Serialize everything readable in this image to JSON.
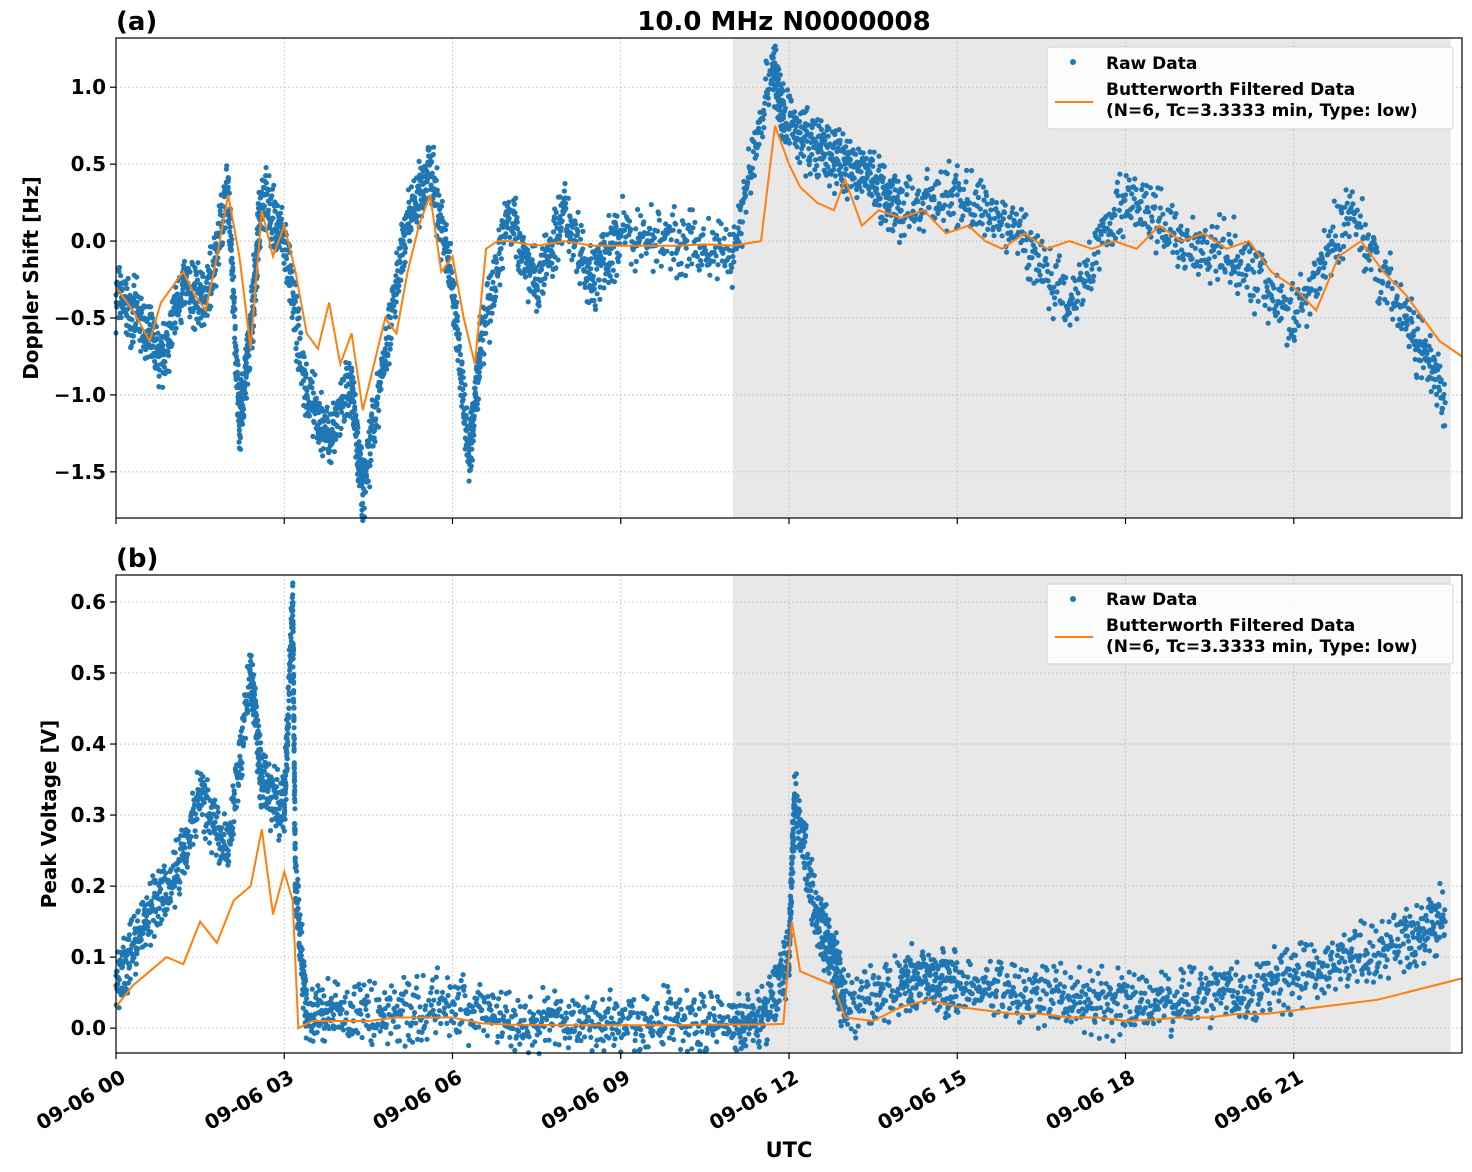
{
  "figure": {
    "title": "10.0 MHz N0000008",
    "xlabel": "UTC",
    "x_ticks": [
      "09-06 00",
      "09-06 03",
      "09-06 06",
      "09-06 09",
      "09-06 12",
      "09-06 15",
      "09-06 18",
      "09-06 21"
    ]
  },
  "colors": {
    "raw": "#1f77b4",
    "filtered": "#ff7f0e",
    "shade": "#e8e8e8",
    "grid": "#b0b0b0"
  },
  "legend": {
    "raw_label": "Raw Data",
    "filtered_label_line1": "Butterworth Filtered Data",
    "filtered_label_line2": "(N=6, Tc=3.3333 min, Type: low)",
    "position": "upper-right"
  },
  "chart_data": [
    {
      "type": "scatter",
      "panel_label": "(a)",
      "ylabel": "Doppler Shift [Hz]",
      "x_unit": "hours UTC (09-06)",
      "xlim": [
        0,
        24
      ],
      "ylim": [
        -1.8,
        1.32
      ],
      "y_ticks": [
        "1.0",
        "0.5",
        "0.0",
        "−0.5",
        "−1.0",
        "−1.5"
      ],
      "y_tick_values": [
        1.0,
        0.5,
        0.0,
        -0.5,
        -1.0,
        -1.5
      ],
      "grid": true,
      "shaded_x_range": [
        11.0,
        23.8
      ],
      "series": [
        {
          "name": "Butterworth Filtered Data",
          "style": "line",
          "x": [
            0,
            0.3,
            0.6,
            0.8,
            1.0,
            1.2,
            1.4,
            1.6,
            1.8,
            2.0,
            2.2,
            2.4,
            2.6,
            2.8,
            3.0,
            3.2,
            3.4,
            3.6,
            3.8,
            4.0,
            4.2,
            4.4,
            4.6,
            4.8,
            5.0,
            5.2,
            5.4,
            5.6,
            5.8,
            6.0,
            6.2,
            6.4,
            6.6,
            6.8,
            7.0,
            7.5,
            8.0,
            8.5,
            9.0,
            9.5,
            10.0,
            10.5,
            11.0,
            11.5,
            11.75,
            12.0,
            12.2,
            12.5,
            12.8,
            13.0,
            13.3,
            13.6,
            14.0,
            14.4,
            14.8,
            15.2,
            15.5,
            15.8,
            16.2,
            16.6,
            17.0,
            17.4,
            17.8,
            18.2,
            18.6,
            19.0,
            19.4,
            19.8,
            20.2,
            20.6,
            21.0,
            21.4,
            21.8,
            22.2,
            22.6,
            23.0,
            23.3,
            23.6,
            24.0
          ],
          "y": [
            -0.3,
            -0.45,
            -0.65,
            -0.4,
            -0.3,
            -0.2,
            -0.35,
            -0.45,
            -0.1,
            0.3,
            -0.1,
            -0.7,
            0.2,
            -0.1,
            0.1,
            -0.2,
            -0.6,
            -0.7,
            -0.4,
            -0.8,
            -0.6,
            -1.1,
            -0.8,
            -0.5,
            -0.6,
            -0.2,
            0.1,
            0.3,
            -0.2,
            -0.1,
            -0.5,
            -0.8,
            -0.05,
            0.0,
            0.0,
            -0.03,
            0.0,
            -0.03,
            -0.03,
            -0.03,
            -0.03,
            -0.02,
            -0.03,
            0.0,
            0.75,
            0.5,
            0.35,
            0.25,
            0.2,
            0.4,
            0.1,
            0.2,
            0.15,
            0.2,
            0.05,
            0.1,
            0.0,
            -0.05,
            0.05,
            -0.05,
            0.0,
            -0.05,
            0.0,
            -0.05,
            0.1,
            0.0,
            0.05,
            -0.05,
            0.0,
            -0.2,
            -0.3,
            -0.45,
            -0.1,
            0.0,
            -0.2,
            -0.35,
            -0.5,
            -0.65,
            -0.75
          ]
        },
        {
          "name": "Raw Data",
          "style": "points",
          "x": [
            0,
            0.4,
            0.8,
            1.2,
            1.6,
            2.0,
            2.2,
            2.4,
            2.6,
            3.0,
            3.4,
            3.8,
            4.2,
            4.4,
            4.8,
            5.2,
            5.6,
            6.0,
            6.3,
            6.5,
            7.0,
            7.5,
            8.0,
            8.5,
            9.0,
            10.0,
            11.0,
            11.7,
            11.9,
            12.5,
            13.0,
            13.5,
            14.0,
            15.0,
            16.0,
            17.0,
            18.0,
            19.0,
            20.0,
            21.0,
            22.0,
            23.0,
            23.7
          ],
          "y": [
            -0.35,
            -0.5,
            -0.8,
            -0.3,
            -0.4,
            0.35,
            -1.2,
            -0.6,
            0.3,
            0.0,
            -1.0,
            -1.3,
            -0.9,
            -1.65,
            -0.7,
            0.1,
            0.5,
            -0.3,
            -1.4,
            -0.7,
            0.2,
            -0.3,
            0.2,
            -0.25,
            0.05,
            0.0,
            -0.1,
            1.15,
            0.8,
            0.6,
            0.5,
            0.4,
            0.2,
            0.3,
            0.1,
            -0.4,
            0.3,
            0.0,
            -0.1,
            -0.5,
            0.2,
            -0.5,
            -1.05
          ]
        }
      ]
    },
    {
      "type": "scatter",
      "panel_label": "(b)",
      "ylabel": "Peak Voltage [V]",
      "x_unit": "hours UTC (09-06)",
      "xlim": [
        0,
        24
      ],
      "ylim": [
        -0.035,
        0.638
      ],
      "y_ticks": [
        "0.6",
        "0.5",
        "0.4",
        "0.3",
        "0.2",
        "0.1",
        "0.0"
      ],
      "y_tick_values": [
        0.6,
        0.5,
        0.4,
        0.3,
        0.2,
        0.1,
        0.0
      ],
      "grid": true,
      "shaded_x_range": [
        11.0,
        23.8
      ],
      "series": [
        {
          "name": "Butterworth Filtered Data",
          "style": "line",
          "x": [
            0,
            0.3,
            0.6,
            0.9,
            1.2,
            1.5,
            1.8,
            2.1,
            2.4,
            2.6,
            2.8,
            3.0,
            3.15,
            3.25,
            3.5,
            4.0,
            4.5,
            5.0,
            5.5,
            6.0,
            6.5,
            7.0,
            8.0,
            9.0,
            10.0,
            10.5,
            11.0,
            11.5,
            11.9,
            12.05,
            12.2,
            12.5,
            12.8,
            13.0,
            13.5,
            14.0,
            14.5,
            15.0,
            15.5,
            16.0,
            16.5,
            17.0,
            17.5,
            18.0,
            18.5,
            19.0,
            19.5,
            20.0,
            20.5,
            21.0,
            21.5,
            22.0,
            22.5,
            23.0,
            23.5,
            24.0
          ],
          "y": [
            0.03,
            0.06,
            0.08,
            0.1,
            0.09,
            0.15,
            0.12,
            0.18,
            0.2,
            0.28,
            0.16,
            0.22,
            0.18,
            0.0,
            0.01,
            0.01,
            0.01,
            0.015,
            0.015,
            0.015,
            0.007,
            0.005,
            0.004,
            0.004,
            0.004,
            0.005,
            0.005,
            0.005,
            0.006,
            0.15,
            0.08,
            0.07,
            0.06,
            0.015,
            0.01,
            0.03,
            0.04,
            0.03,
            0.025,
            0.02,
            0.02,
            0.015,
            0.015,
            0.01,
            0.012,
            0.015,
            0.015,
            0.02,
            0.02,
            0.025,
            0.03,
            0.035,
            0.04,
            0.05,
            0.06,
            0.07
          ]
        },
        {
          "name": "Raw Data",
          "style": "points",
          "x": [
            0,
            0.5,
            1.0,
            1.5,
            2.0,
            2.4,
            2.6,
            3.0,
            3.15,
            3.2,
            3.4,
            4.0,
            5.0,
            6.0,
            7.0,
            8.0,
            9.0,
            10.0,
            11.0,
            11.5,
            12.0,
            12.1,
            12.5,
            12.8,
            13.0,
            14.0,
            14.5,
            15.0,
            16.0,
            17.0,
            18.0,
            19.0,
            20.0,
            21.0,
            22.0,
            23.0,
            23.7
          ],
          "y": [
            0.06,
            0.15,
            0.2,
            0.33,
            0.25,
            0.5,
            0.35,
            0.3,
            0.61,
            0.2,
            0.02,
            0.02,
            0.02,
            0.035,
            0.01,
            0.01,
            0.01,
            0.01,
            0.01,
            0.01,
            0.1,
            0.33,
            0.15,
            0.1,
            0.03,
            0.06,
            0.08,
            0.06,
            0.05,
            0.04,
            0.03,
            0.04,
            0.05,
            0.07,
            0.1,
            0.13,
            0.15
          ]
        }
      ]
    }
  ]
}
